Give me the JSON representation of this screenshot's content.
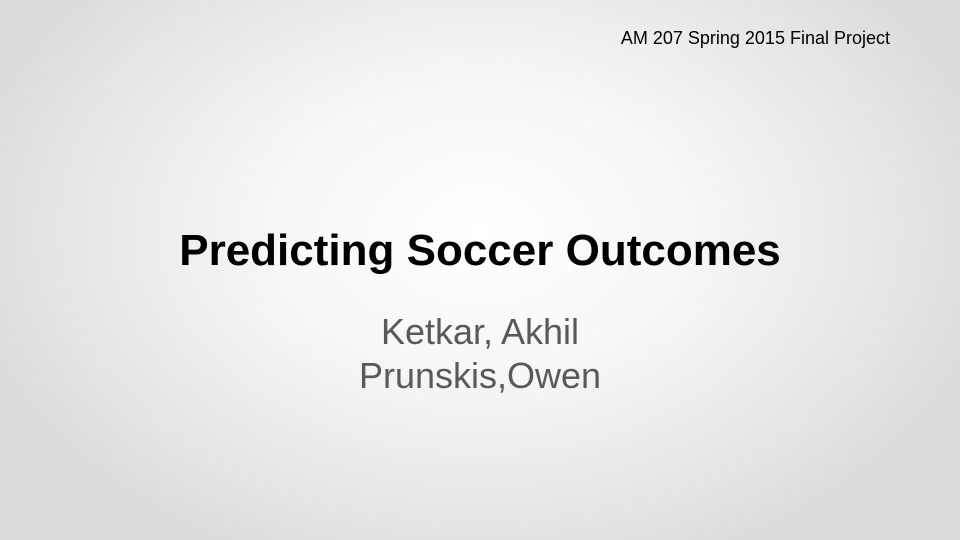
{
  "slide": {
    "course_label": "AM 207 Spring 2015 Final Project",
    "title": "Predicting Soccer Outcomes",
    "authors": [
      "Ketkar, Akhil",
      "Prunskis,Owen"
    ]
  },
  "colors": {
    "title": "#000000",
    "subtitle": "#595959",
    "background_center": "#ffffff",
    "background_edge": "#dcdcdc"
  }
}
